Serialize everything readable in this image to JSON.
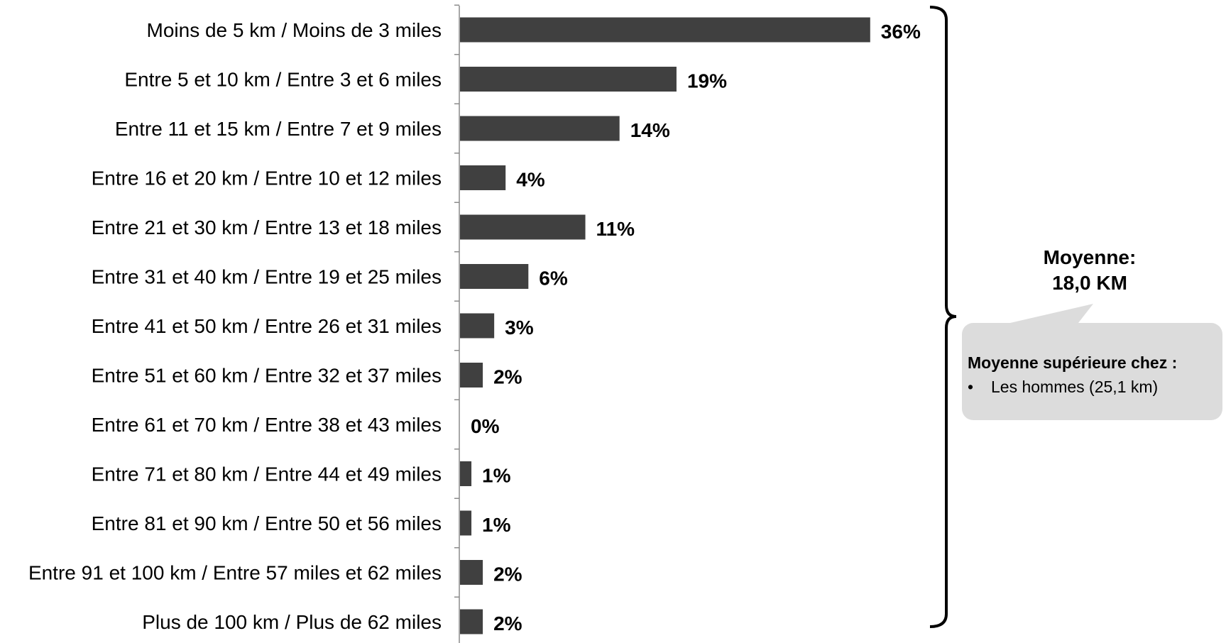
{
  "chart_data": {
    "type": "bar",
    "orientation": "horizontal",
    "categories": [
      "Moins de 5 km / Moins de 3 miles",
      "Entre 5 et 10 km / Entre 3 et 6 miles",
      "Entre 11 et 15 km / Entre 7 et 9 miles",
      "Entre 16 et 20 km / Entre 10 et 12 miles",
      "Entre 21 et 30 km / Entre 13 et 18 miles",
      "Entre 31 et 40 km / Entre 19 et 25 miles",
      "Entre 41 et 50 km / Entre 26 et 31 miles",
      "Entre 51 et 60 km / Entre 32 et 37 miles",
      "Entre 61 et 70 km / Entre 38 et 43 miles",
      "Entre 71 et 80 km / Entre 44 et 49 miles",
      "Entre 81 et 90 km / Entre 50 et 56 miles",
      "Entre 91 et 100 km / Entre 57 miles et 62 miles",
      "Plus de 100 km / Plus de 62 miles"
    ],
    "values": [
      36,
      19,
      14,
      4,
      11,
      6,
      3,
      2,
      0,
      1,
      1,
      2,
      2
    ],
    "value_labels": [
      "36%",
      "19%",
      "14%",
      "4%",
      "11%",
      "6%",
      "3%",
      "2%",
      "0%",
      "1%",
      "1%",
      "2%",
      "2%"
    ],
    "title": "",
    "xlabel": "",
    "ylabel": "",
    "xlim": [
      0,
      40
    ],
    "grid": false,
    "legend": "none",
    "bar_color": "#404040",
    "annotations": {
      "average_line1": "Moyenne:",
      "average_line2": "18,0 KM",
      "callout_title": "Moyenne supérieure chez :",
      "callout_bullet": "•",
      "callout_items": [
        "Les hommes (25,1 km)"
      ],
      "callout_color": "#dcdcdc"
    }
  }
}
